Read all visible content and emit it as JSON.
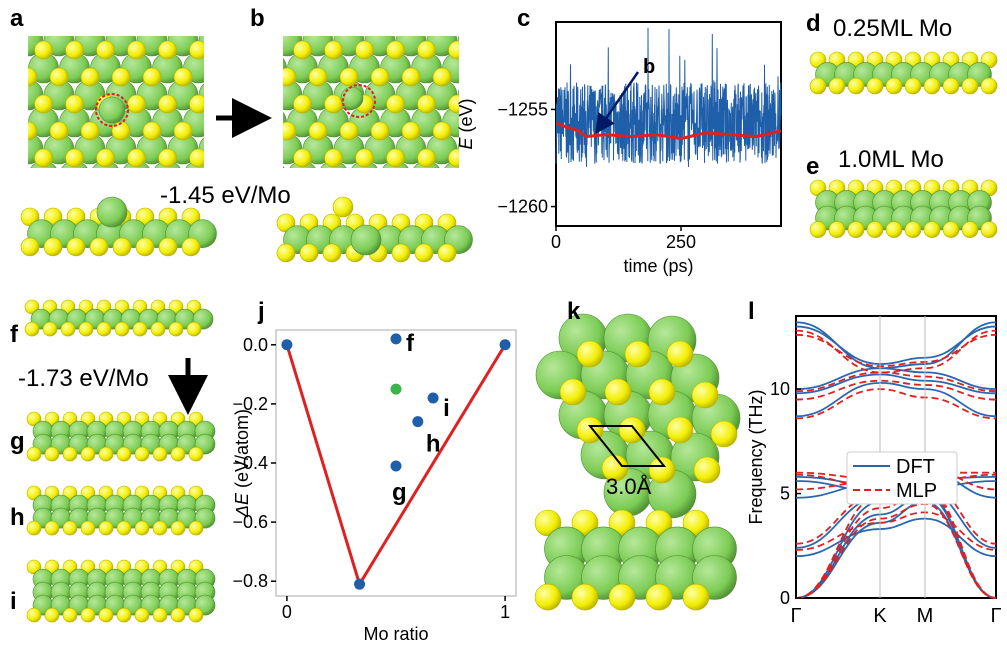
{
  "panels": {
    "a": "a",
    "b": "b",
    "c": "c",
    "d": "d",
    "e": "e",
    "f": "f",
    "g": "g",
    "h": "h",
    "i": "i",
    "j": "j",
    "k": "k",
    "l": "l"
  },
  "annotations": {
    "energy_ab": "-1.45 eV/Mo",
    "energy_fg": "-1.73 eV/Mo",
    "coverage_d": "0.25ML Mo",
    "coverage_e": "1.0ML Mo",
    "lattice_k": "3.0Å",
    "arrow_label_c": "b"
  },
  "colors": {
    "mo_atom": "#7ccc55",
    "s_atom": "#f2ee00",
    "dft_line": "#2a67b0",
    "mlp_line": "#e02020",
    "md_trace": "#1f5ea8",
    "hull_line": "#e02020",
    "point_blue": "#1f5ea8",
    "point_green": "#3cb44b"
  },
  "chart_data": [
    {
      "panel": "c",
      "type": "line",
      "xlabel": "time (ps)",
      "ylabel": "E (eV)",
      "xticks": [
        0,
        250
      ],
      "yticks": [
        -1255,
        -1260
      ],
      "xlim": [
        0,
        450
      ],
      "ylim": [
        -1261,
        -1250.5
      ],
      "series": [
        {
          "values_summary": "fluctuating MD energy between about -1259 and -1252 eV"
        },
        {
          "x": [
            0,
            20,
            45,
            60,
            100,
            150,
            200,
            250,
            300,
            350,
            400,
            450
          ],
          "y": [
            -1255.7,
            -1255.9,
            -1256.1,
            -1256.4,
            -1256.3,
            -1256.4,
            -1256.3,
            -1256.5,
            -1256.2,
            -1256.3,
            -1256.4,
            -1256.1
          ]
        }
      ]
    },
    {
      "panel": "j",
      "type": "scatter",
      "xlabel": "Mo ratio",
      "ylabel": "ΔE (eV/atom)",
      "xticks": [
        0,
        1
      ],
      "yticks": [
        0.0,
        -0.2,
        -0.4,
        -0.6,
        -0.8
      ],
      "xlim": [
        -0.05,
        1.05
      ],
      "ylim": [
        -0.85,
        0.05
      ],
      "points": [
        {
          "x": 0.0,
          "y": 0.0,
          "label": ""
        },
        {
          "x": 0.333,
          "y": -0.81,
          "label": ""
        },
        {
          "x": 1.0,
          "y": 0.0,
          "label": ""
        },
        {
          "x": 0.5,
          "y": 0.02,
          "label": "f"
        },
        {
          "x": 0.5,
          "y": -0.15,
          "label": "",
          "color": "green"
        },
        {
          "x": 0.67,
          "y": -0.18,
          "label": "i"
        },
        {
          "x": 0.6,
          "y": -0.26,
          "label": "h"
        },
        {
          "x": 0.5,
          "y": -0.41,
          "label": "g"
        }
      ],
      "hull": {
        "x": [
          0.0,
          0.333,
          1.0
        ],
        "y": [
          0.0,
          -0.81,
          0.0
        ]
      }
    },
    {
      "panel": "l",
      "type": "line",
      "ylabel": "Frequency (THz)",
      "xticks": [
        "Γ",
        "K",
        "M",
        "Γ"
      ],
      "yticks": [
        0,
        5,
        10
      ],
      "ylim": [
        0,
        13.5
      ],
      "legend": [
        "DFT",
        "MLP"
      ],
      "legend_position": "center"
    }
  ]
}
